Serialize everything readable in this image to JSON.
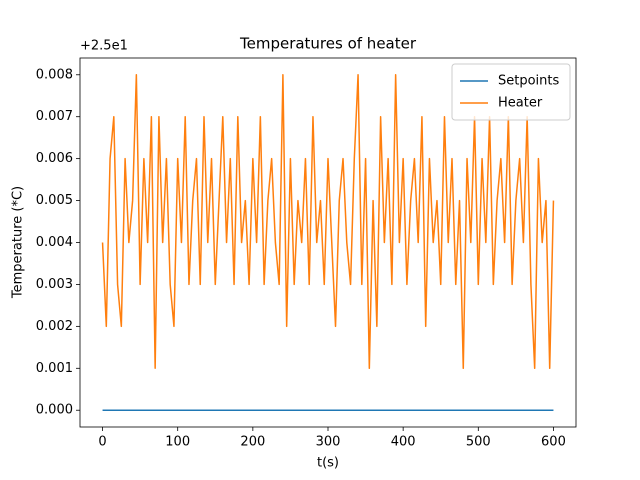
{
  "chart_data": {
    "type": "line",
    "title": "Temperatures of heater",
    "x_label": "t(s)",
    "y_label": "Temperature (*C)",
    "y_offset_label": "+2.5e1",
    "legend": "upper right",
    "grid": false,
    "xlim": [
      -30,
      630
    ],
    "xticks": [
      0,
      100,
      200,
      300,
      400,
      500,
      600
    ],
    "ylim": [
      -0.0004,
      0.0084
    ],
    "yticks": [
      {
        "value": 0,
        "label": "0.000"
      },
      {
        "value": 0.001,
        "label": "0.001"
      },
      {
        "value": 0.002,
        "label": "0.002"
      },
      {
        "value": 0.003,
        "label": "0.003"
      },
      {
        "value": 0.004,
        "label": "0.004"
      },
      {
        "value": 0.005,
        "label": "0.005"
      },
      {
        "value": 0.006,
        "label": "0.006"
      },
      {
        "value": 0.007,
        "label": "0.007"
      },
      {
        "value": 0.008,
        "label": "0.008"
      }
    ],
    "series": [
      {
        "name": "Setpoints",
        "color": "#1f77b4",
        "x": [
          0,
          600
        ],
        "values": [
          0,
          0
        ]
      },
      {
        "name": "Heater",
        "color": "#ff7f0e",
        "x": [
          0,
          5,
          10,
          15,
          20,
          25,
          30,
          35,
          40,
          45,
          50,
          55,
          60,
          65,
          70,
          75,
          80,
          85,
          90,
          95,
          100,
          105,
          110,
          115,
          120,
          125,
          130,
          135,
          140,
          145,
          150,
          155,
          160,
          165,
          170,
          175,
          180,
          185,
          190,
          195,
          200,
          205,
          210,
          215,
          220,
          225,
          230,
          235,
          240,
          245,
          250,
          255,
          260,
          265,
          270,
          275,
          280,
          285,
          290,
          295,
          300,
          305,
          310,
          315,
          320,
          325,
          330,
          335,
          340,
          345,
          350,
          355,
          360,
          365,
          370,
          375,
          380,
          385,
          390,
          395,
          400,
          405,
          410,
          415,
          420,
          425,
          430,
          435,
          440,
          445,
          450,
          455,
          460,
          465,
          470,
          475,
          480,
          485,
          490,
          495,
          500,
          505,
          510,
          515,
          520,
          525,
          530,
          535,
          540,
          545,
          550,
          555,
          560,
          565,
          570,
          575,
          580,
          585,
          590,
          595,
          600
        ],
        "values": [
          0.004,
          0.002,
          0.006,
          0.007,
          0.003,
          0.002,
          0.006,
          0.004,
          0.005,
          0.008,
          0.003,
          0.006,
          0.004,
          0.007,
          0.001,
          0.007,
          0.004,
          0.006,
          0.003,
          0.002,
          0.006,
          0.004,
          0.007,
          0.003,
          0.005,
          0.006,
          0.003,
          0.007,
          0.004,
          0.006,
          0.003,
          0.005,
          0.007,
          0.004,
          0.006,
          0.003,
          0.007,
          0.004,
          0.005,
          0.003,
          0.006,
          0.004,
          0.007,
          0.003,
          0.005,
          0.006,
          0.004,
          0.003,
          0.008,
          0.002,
          0.006,
          0.003,
          0.005,
          0.004,
          0.006,
          0.003,
          0.007,
          0.004,
          0.005,
          0.003,
          0.006,
          0.004,
          0.002,
          0.005,
          0.006,
          0.004,
          0.003,
          0.006,
          0.008,
          0.003,
          0.006,
          0.001,
          0.005,
          0.002,
          0.007,
          0.004,
          0.006,
          0.003,
          0.008,
          0.004,
          0.006,
          0.003,
          0.005,
          0.006,
          0.004,
          0.007,
          0.002,
          0.006,
          0.004,
          0.005,
          0.003,
          0.007,
          0.004,
          0.006,
          0.003,
          0.005,
          0.001,
          0.006,
          0.004,
          0.007,
          0.003,
          0.006,
          0.004,
          0.007,
          0.003,
          0.005,
          0.006,
          0.004,
          0.007,
          0.003,
          0.005,
          0.006,
          0.004,
          0.007,
          0.003,
          0.001,
          0.006,
          0.004,
          0.005,
          0.001,
          0.005
        ]
      }
    ]
  }
}
